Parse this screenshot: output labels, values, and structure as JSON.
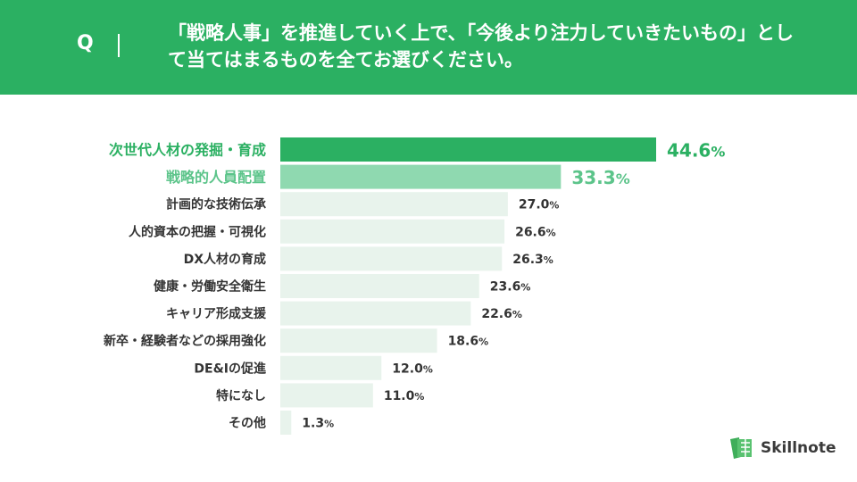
{
  "header": {
    "q_label": "Q",
    "question": "「戦略人事」を推進していく上で、「今後より注力していきたいもの」として当てはまるものを全てお選びください。"
  },
  "logo": {
    "name": "Skillnote"
  },
  "colors": {
    "header": "#2bb062",
    "top1": "#2bb062",
    "top2": "#8fd9b0",
    "other": "#e8f3ec",
    "top1_text": "#2bb062",
    "top2_text": "#5cc48a",
    "text": "#333333"
  },
  "chart_data": {
    "type": "bar",
    "orientation": "horizontal",
    "unit": "%",
    "categories": [
      "次世代人材の発掘・育成",
      "戦略的人員配置",
      "計画的な技術伝承",
      "人的資本の把握・可視化",
      "DX人材の育成",
      "健康・労働安全衛生",
      "キャリア形成支援",
      "新卒・経験者などの採用強化",
      "DE&Iの促進",
      "特になし",
      "その他"
    ],
    "values": [
      44.6,
      33.3,
      27.0,
      26.6,
      26.3,
      23.6,
      22.6,
      18.6,
      12.0,
      11.0,
      1.3
    ],
    "labels": [
      "44.6",
      "33.3",
      "27.0",
      "26.6",
      "26.3",
      "23.6",
      "22.6",
      "18.6",
      "12.0",
      "11.0",
      "1.3"
    ],
    "xlim": [
      0,
      50
    ],
    "grid": false,
    "legend": "none"
  }
}
